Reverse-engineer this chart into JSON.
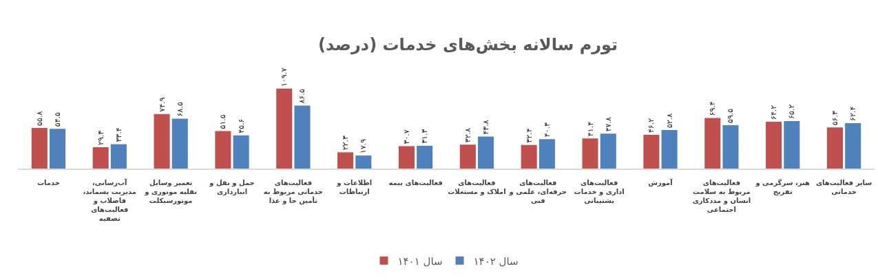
{
  "chart_data": {
    "type": "bar",
    "title": "تورم سالانه بخش‌های خدمات (درصد)",
    "categories": [
      "خدمات",
      "آب‌رسانی، مدیریت پسماند، فاضلاب و فعالیت‌های تصفیه",
      "تعمیر وسایل نقلیه موتوری و موتورسیکلت",
      "حمل و نقل و انبارداری",
      "فعالیت‌های خدماتی مربوط به تأمین جا و غذا",
      "اطلاعات و ارتباطات",
      "فعالیت‌های بیمه",
      "فعالیت‌های املاک و مستغلات",
      "فعالیت‌های حرفه‌ای، علمی و فنی",
      "فعالیت‌های اداری و خدمات پشتیبانی",
      "آموزش",
      "فعالیت‌های مربوط به سلامت انسان و مددکاری اجتماعی",
      "هنر، سرگرمی و تفریح",
      "سایر فعالیت‌های خدماتی"
    ],
    "series": [
      {
        "name": "سال ۱۴۰۱",
        "color": "#c0504d",
        "values": [
          55.8,
          29.3,
          74.9,
          51.5,
          109.7,
          22.3,
          30.7,
          32.8,
          32.4,
          41.4,
          46.2,
          69.4,
          64.2,
          56.3
        ],
        "value_labels": [
          "۵۵.۸",
          "۲۹.۳",
          "۷۴.۹",
          "۵۱.۵",
          "۱۰۹.۷",
          "۲۲.۳",
          "۳۰.۷",
          "۳۲.۸",
          "۳۲.۴",
          "۴۱.۴",
          "۴۶.۲",
          "۶۹.۴",
          "۶۴.۲",
          "۵۶.۳"
        ]
      },
      {
        "name": "سال ۱۴۰۲",
        "color": "#4f81bd",
        "values": [
          54.5,
          33.4,
          68.5,
          45.6,
          86.5,
          17.9,
          31.3,
          43.8,
          40.3,
          47.8,
          52.8,
          59.5,
          65.2,
          62.4
        ],
        "value_labels": [
          "۵۴.۵",
          "۳۳.۴",
          "۶۸.۵",
          "۴۵.۶",
          "۸۶.۵",
          "۱۷.۹",
          "۳۱.۳",
          "۴۳.۸",
          "۴۰.۳",
          "۴۷.۸",
          "۵۲.۸",
          "۵۹.۵",
          "۶۵.۲",
          "۶۲.۴"
        ]
      }
    ],
    "legend": "bottom",
    "tick_labels": "x"
  }
}
